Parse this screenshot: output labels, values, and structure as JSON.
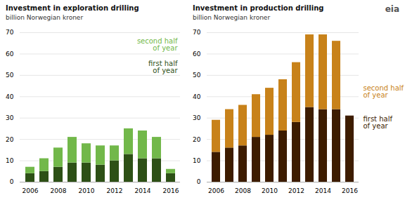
{
  "chart_data": [
    {
      "type": "bar",
      "stacked": true,
      "grid": true,
      "legend": "top-right",
      "title": "Investment in exploration drilling",
      "subtitle": "billion Norwegian kroner",
      "categories": [
        2006,
        null,
        2008,
        null,
        2010,
        null,
        2012,
        null,
        2014,
        null,
        2016
      ],
      "series": [
        {
          "name": "first half\nof year",
          "color": "#2d5016",
          "values": [
            4,
            5,
            7,
            9,
            9,
            8,
            10,
            13,
            11,
            11,
            4
          ]
        },
        {
          "name": "second half\nof year",
          "color": "#72b84a",
          "values": [
            3,
            6,
            9,
            12,
            9,
            9,
            7,
            12,
            13,
            10,
            2
          ]
        }
      ],
      "ylim": [
        0,
        70
      ],
      "yticks": [
        0,
        10,
        20,
        30,
        40,
        50,
        60,
        70
      ]
    },
    {
      "type": "bar",
      "stacked": true,
      "grid": true,
      "legend": "right",
      "title": "Investment in production drilling",
      "subtitle": "billion Norwegian kroner",
      "annotations": [
        "eia"
      ],
      "categories": [
        2006,
        null,
        2008,
        null,
        2010,
        null,
        2012,
        null,
        2014,
        null,
        2016
      ],
      "series": [
        {
          "name": "first half\nof year",
          "color": "#3d1c00",
          "values": [
            14,
            16,
            17,
            21,
            22,
            24,
            28,
            35,
            34,
            34,
            31
          ]
        },
        {
          "name": "second half\nof year",
          "color": "#c8821a",
          "values": [
            15,
            18,
            19,
            20,
            22,
            24,
            28,
            34,
            35,
            32,
            0
          ]
        }
      ],
      "ylim": [
        0,
        70
      ],
      "yticks": [
        0,
        10,
        20,
        30,
        40,
        50,
        60,
        70
      ]
    }
  ]
}
